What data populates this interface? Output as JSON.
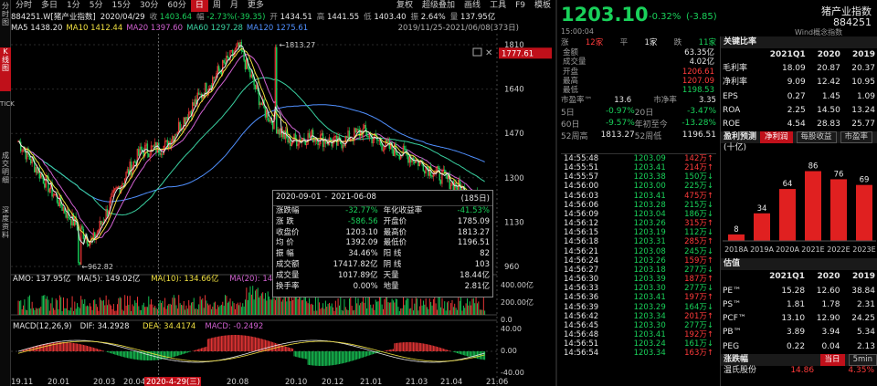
{
  "left_tabs": [
    {
      "label": "分时图",
      "active": false
    },
    {
      "label": "K线图",
      "active": true
    },
    {
      "label": "TICK",
      "active": false
    },
    {
      "label": "成交明细",
      "active": false
    },
    {
      "label": "深度资料",
      "active": false
    }
  ],
  "toolbar": {
    "periods": [
      {
        "label": "分时",
        "active": false
      },
      {
        "label": "多日",
        "active": false
      },
      {
        "label": "1分",
        "active": false
      },
      {
        "label": "5分",
        "active": false
      },
      {
        "label": "15分",
        "active": false
      },
      {
        "label": "30分",
        "active": false
      },
      {
        "label": "60分",
        "active": false
      },
      {
        "label": "日",
        "active": true
      },
      {
        "label": "周",
        "active": false
      },
      {
        "label": "月",
        "active": false
      },
      {
        "label": "更多",
        "active": false
      }
    ],
    "right": [
      "复权",
      "超级叠加",
      "画线",
      "工具",
      "F9",
      "模板"
    ]
  },
  "info_bar": {
    "code_name": "884251.W[猪产业指数]",
    "date": "2020/04/29",
    "price_label": "收",
    "price": "1403.64",
    "chg_label": "幅",
    "chg": "-2.73%(-39.35)",
    "open_label": "开",
    "open": "1434.51",
    "high_label": "高",
    "high": "1441.55",
    "low_label": "低",
    "low": "1403.40",
    "turn_label": "振",
    "turn": "2.64%",
    "amt_label": "量",
    "amt": "137.95亿"
  },
  "ma_bar": {
    "items": [
      {
        "label": "MA5",
        "value": "1438.20",
        "color": "#e6e6e6"
      },
      {
        "label": "MA10",
        "value": "1412.44",
        "color": "#f0e040"
      },
      {
        "label": "MA20",
        "value": "1397.60",
        "color": "#d060d0"
      },
      {
        "label": "MA60",
        "value": "1297.28",
        "color": "#39d0a0"
      },
      {
        "label": "MA120",
        "value": "1275.61",
        "color": "#5090ff"
      }
    ],
    "range": "2019/11/25-2021/06/08(373日)"
  },
  "chart_data": {
    "type": "line",
    "title": "",
    "price_axis_ticks": [
      "1810",
      "1640",
      "1470",
      "1300",
      "1130",
      "960"
    ],
    "current_price_tag": "1777.61",
    "max_marker": "1813.27",
    "min_marker": "962.82",
    "x_ticks": [
      "19.11",
      "20.01",
      "20.03",
      "20.04",
      "2020-4-29(三)",
      "20.08",
      "20.10",
      "20.12",
      "21.01",
      "21.03",
      "21.04",
      "21.06"
    ],
    "price_series": [
      {
        "name": "收盘价",
        "x": [
          "2019-11",
          "2019-12",
          "2020-01",
          "2020-02",
          "2020-03",
          "2020-04",
          "2020-05",
          "2020-06",
          "2020-07",
          "2020-08",
          "2020-09",
          "2020-10",
          "2020-11",
          "2020-12",
          "2021-01",
          "2021-02",
          "2021-03",
          "2021-04",
          "2021-05",
          "2021-06"
        ],
        "values": [
          1440,
          1300,
          1160,
          1050,
          1250,
          1403,
          1420,
          1560,
          1690,
          1800,
          1560,
          1440,
          1460,
          1430,
          1480,
          1420,
          1380,
          1320,
          1260,
          1200
        ]
      }
    ],
    "volume_panel": {
      "label": "AMO: 137.95亿",
      "ma5": "MA(5): 149.02亿",
      "ma10": "MA(10): 134.66亿",
      "ma20": "MA(20): 146.12亿",
      "ticks": [
        "400.00亿",
        "200.00亿",
        "0.0"
      ]
    },
    "macd_panel": {
      "label": "MACD(12,26,9)",
      "dif": "DIF: 34.2928",
      "dea": "DEA: 34.4174",
      "macd": "MACD: -0.2492",
      "ticks": [
        "40.00",
        "0.00",
        "-40.00"
      ]
    }
  },
  "stat_popup": {
    "range_from": "2020-09-01",
    "range_to": "2021-06-08",
    "days": "(185日)",
    "rows": [
      [
        "涨跌幅",
        "-32.77%",
        "年化收益率",
        "-41.53%"
      ],
      [
        "涨 跌",
        "-586.56",
        "开盘价",
        "1785.09"
      ],
      [
        "收盘价",
        "1203.10",
        "最高价",
        "1813.27"
      ],
      [
        "均 价",
        "1392.09",
        "最低价",
        "1196.51"
      ],
      [
        "振 幅",
        "34.46%",
        "阳 线",
        "82"
      ],
      [
        "成交额",
        "17417.82亿",
        "阴 线",
        "103"
      ],
      [
        "成交量",
        "1017.89亿",
        "天量",
        "18.44亿"
      ],
      [
        "换手率",
        "0.00%",
        "地量",
        "2.81亿"
      ]
    ]
  },
  "quote": {
    "price": "1203.10",
    "change": "-0.32%",
    "change_abs": "(-3.85)",
    "name": "猪产业指数",
    "code": "884251",
    "time": "15:00:04",
    "source": "Wind概念指数",
    "up_label": "涨",
    "up": "12家",
    "flat_label": "平",
    "flat": "1家",
    "down_label": "跌",
    "down": "11家",
    "rows": [
      [
        "金额",
        "63.35亿"
      ],
      [
        "成交量",
        "4.02亿"
      ],
      [
        "开盘",
        "1206.61"
      ],
      [
        "最高",
        "1207.09"
      ],
      [
        "最低",
        "1198.53"
      ]
    ],
    "pe": {
      "label": "市盈率™",
      "value": "13.6",
      "pb_label": "市净率",
      "pb": "3.35"
    },
    "perf": [
      [
        "5日",
        "-0.97%",
        "20日",
        "-3.47%"
      ],
      [
        "60日",
        "-9.57%",
        "年初至今",
        "-13.28%"
      ],
      [
        "52周高",
        "1813.27",
        "52周低",
        "1196.51"
      ]
    ]
  },
  "ticks": [
    [
      "14:55:48",
      "1203.09",
      "142万",
      "red"
    ],
    [
      "14:55:51",
      "1203.41",
      "214万",
      "red"
    ],
    [
      "14:55:57",
      "1203.38",
      "150万",
      "green"
    ],
    [
      "14:56:00",
      "1203.00",
      "225万",
      "green"
    ],
    [
      "14:56:03",
      "1203.41",
      "475万",
      "red"
    ],
    [
      "14:56:06",
      "1203.28",
      "215万",
      "green"
    ],
    [
      "14:56:09",
      "1203.04",
      "186万",
      "green"
    ],
    [
      "14:56:12",
      "1203.26",
      "315万",
      "red"
    ],
    [
      "14:56:15",
      "1203.19",
      "112万",
      "green"
    ],
    [
      "14:56:18",
      "1203.31",
      "285万",
      "red"
    ],
    [
      "14:56:21",
      "1203.08",
      "245万",
      "green"
    ],
    [
      "14:56:24",
      "1203.26",
      "159万",
      "red"
    ],
    [
      "14:56:27",
      "1203.18",
      "277万",
      "green"
    ],
    [
      "14:56:30",
      "1203.39",
      "187万",
      "red"
    ],
    [
      "14:56:33",
      "1203.30",
      "277万",
      "green"
    ],
    [
      "14:56:36",
      "1203.41",
      "197万",
      "red"
    ],
    [
      "14:56:39",
      "1203.29",
      "164万",
      "green"
    ],
    [
      "14:56:42",
      "1203.34",
      "201万",
      "red"
    ],
    [
      "14:56:45",
      "1203.30",
      "277万",
      "green"
    ],
    [
      "14:56:48",
      "1203.41",
      "192万",
      "red"
    ],
    [
      "14:56:51",
      "1203.24",
      "161万",
      "green"
    ],
    [
      "14:56:54",
      "1203.34",
      "163万",
      "red"
    ]
  ],
  "compare": {
    "title": "关键比率",
    "cols": [
      "",
      "2021Q1",
      "2020",
      "2019"
    ],
    "rows": [
      [
        "毛利率",
        "18.09",
        "20.87",
        "20.37"
      ],
      [
        "净利率",
        "9.09",
        "12.42",
        "10.95"
      ],
      [
        "EPS",
        "0.27",
        "1.45",
        "1.09"
      ],
      [
        "ROA",
        "2.25",
        "14.50",
        "13.24"
      ],
      [
        "ROE",
        "4.54",
        "28.83",
        "25.77"
      ]
    ]
  },
  "forecast": {
    "title": "盈利预测",
    "tabs": [
      {
        "label": "净利润",
        "active": true
      },
      {
        "label": "每股收益",
        "active": false
      },
      {
        "label": "市盈率",
        "active": false
      }
    ],
    "unit": "(十亿)",
    "chart_data": {
      "type": "bar",
      "categories": [
        "2018A",
        "2019A",
        "2020A",
        "2021E",
        "2022E",
        "2023E"
      ],
      "values": [
        8,
        34,
        64,
        86,
        76,
        69
      ]
    }
  },
  "valuation": {
    "title": "估值",
    "cols": [
      "",
      "2021Q1",
      "2020",
      "2019"
    ],
    "rows": [
      [
        "PE™",
        "15.28",
        "12.60",
        "38.84"
      ],
      [
        "PS™",
        "1.81",
        "1.78",
        "2.31"
      ],
      [
        "PCF™",
        "13.10",
        "12.90",
        "24.25"
      ],
      [
        "PB™",
        "3.89",
        "3.94",
        "5.34"
      ],
      [
        "PEG",
        "0.22",
        "0.04",
        "2.13"
      ]
    ]
  },
  "movers": {
    "title": "涨跌幅",
    "tabs": [
      {
        "label": "当日",
        "active": true
      },
      {
        "label": "5min",
        "active": false
      }
    ],
    "top": [
      "温氏股份",
      "14.86",
      "4.35%"
    ]
  }
}
